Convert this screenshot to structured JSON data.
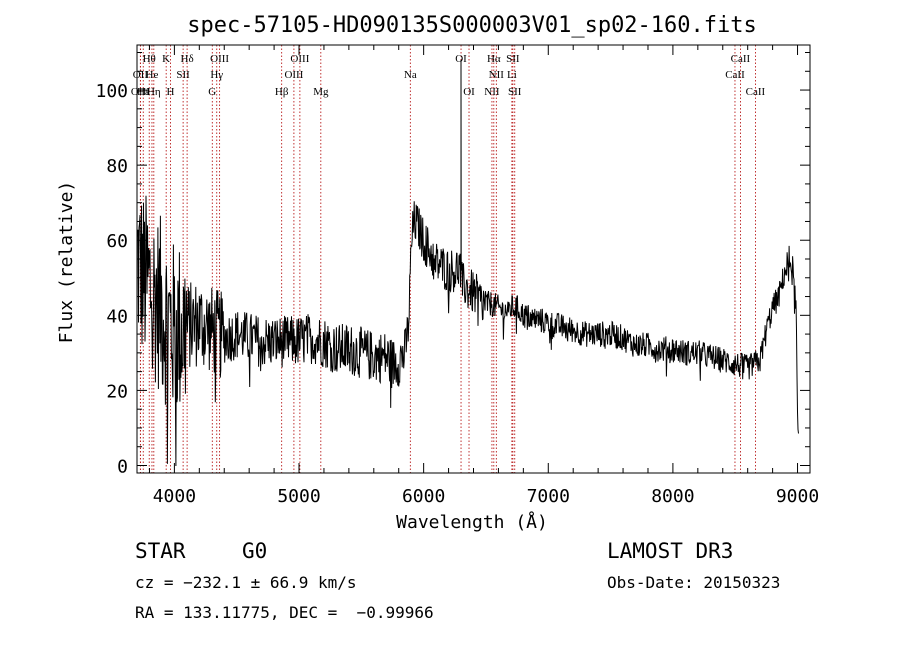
{
  "chart_data": {
    "type": "line",
    "title": "spec-57105-HD090135S000003V01_sp02-160.fits",
    "xlabel": "Wavelength (Å)",
    "ylabel": "Flux (relative)",
    "xlim": [
      3700,
      9100
    ],
    "ylim": [
      -2,
      112
    ],
    "xticks": [
      4000,
      5000,
      6000,
      7000,
      8000,
      9000
    ],
    "yticks": [
      0,
      20,
      40,
      60,
      80,
      100
    ],
    "grid": false,
    "series": [
      {
        "name": "flux",
        "x": [
          3700,
          3750,
          3800,
          3850,
          3900,
          3950,
          4000,
          4100,
          4200,
          4300,
          4400,
          4500,
          4600,
          4700,
          4800,
          4900,
          5000,
          5100,
          5200,
          5300,
          5400,
          5500,
          5600,
          5700,
          5750,
          5800,
          5850,
          5880,
          5900,
          5920,
          5950,
          6000,
          6050,
          6100,
          6150,
          6200,
          6250,
          6290,
          6300,
          6310,
          6330,
          6350,
          6400,
          6450,
          6500,
          6550,
          6600,
          6650,
          6700,
          6750,
          6800,
          6900,
          7000,
          7100,
          7200,
          7300,
          7400,
          7500,
          7600,
          7700,
          7800,
          7900,
          8000,
          8100,
          8200,
          8300,
          8400,
          8500,
          8600,
          8650,
          8700,
          8750,
          8800,
          8850,
          8900,
          8950,
          8990,
          9000,
          9010
        ],
        "values": [
          55,
          50,
          48,
          45,
          42,
          38,
          36,
          37,
          38,
          36,
          34,
          35,
          34,
          33,
          33,
          33,
          33,
          34,
          33,
          31,
          31,
          30,
          29,
          29,
          27,
          28,
          30,
          38,
          58,
          65,
          64,
          60,
          57,
          54,
          53,
          52,
          52,
          53,
          50,
          48,
          48,
          47,
          46,
          44,
          43,
          43,
          42,
          41,
          42,
          42,
          40,
          39,
          38,
          37,
          36,
          35,
          35,
          35,
          34,
          32,
          32,
          31,
          31,
          30,
          30,
          29,
          28,
          27,
          26,
          27,
          28,
          36,
          42,
          45,
          52,
          55,
          40,
          10,
          2
        ]
      }
    ],
    "lines": [
      {
        "label": "Hθ",
        "x": 3798,
        "row": 1
      },
      {
        "label": "OII",
        "x": 3727,
        "row": 2
      },
      {
        "label": "OIII",
        "x": 3727,
        "row": 3
      },
      {
        "label": "Hε",
        "x": 3750,
        "row": 3
      },
      {
        "label": "He",
        "x": 3820,
        "row": 2
      },
      {
        "label": "Hη",
        "x": 3835,
        "row": 3
      },
      {
        "label": "K",
        "x": 3934,
        "row": 1
      },
      {
        "label": "H",
        "x": 3969,
        "row": 3
      },
      {
        "label": "SII",
        "x": 4070,
        "row": 2
      },
      {
        "label": "Hδ",
        "x": 4102,
        "row": 1
      },
      {
        "label": "OIII",
        "x": 4363,
        "row": 1
      },
      {
        "label": "Hγ",
        "x": 4340,
        "row": 2
      },
      {
        "label": "G",
        "x": 4304,
        "row": 3
      },
      {
        "label": "Hβ",
        "x": 4861,
        "row": 3
      },
      {
        "label": "OIII",
        "x": 5007,
        "row": 1
      },
      {
        "label": "OIII",
        "x": 4959,
        "row": 2
      },
      {
        "label": "Mg",
        "x": 5175,
        "row": 3
      },
      {
        "label": "Na",
        "x": 5893,
        "row": 2
      },
      {
        "label": "OI",
        "x": 6300,
        "row": 1
      },
      {
        "label": "OI",
        "x": 6364,
        "row": 3
      },
      {
        "label": "Hα",
        "x": 6563,
        "row": 1
      },
      {
        "label": "NII",
        "x": 6583,
        "row": 2
      },
      {
        "label": "NII",
        "x": 6548,
        "row": 3
      },
      {
        "label": "SII",
        "x": 6716,
        "row": 1
      },
      {
        "label": "Li",
        "x": 6708,
        "row": 2
      },
      {
        "label": "SII",
        "x": 6731,
        "row": 3
      },
      {
        "label": "CaII",
        "x": 8542,
        "row": 1
      },
      {
        "label": "CaII",
        "x": 8498,
        "row": 2
      },
      {
        "label": "CaII",
        "x": 8662,
        "row": 3
      }
    ]
  },
  "info": {
    "object_type": "STAR",
    "subclass": "G0",
    "survey": "LAMOST DR3",
    "cz": "cz = −232.1 ± 66.9 km/s",
    "obs_date": "Obs-Date: 20150323",
    "coords": "RA = 133.11775, DEC =  −0.99966"
  }
}
